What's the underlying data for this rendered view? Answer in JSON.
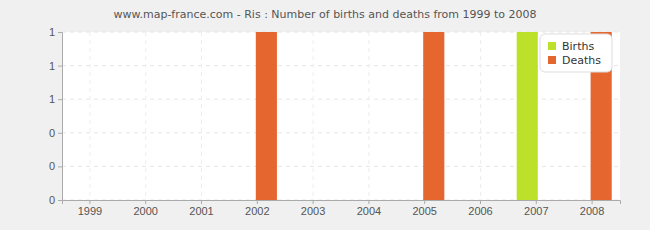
{
  "chart_data": {
    "type": "bar",
    "title": "www.map-france.com - Ris : Number of births and deaths from 1999 to 2008",
    "categories": [
      "1999",
      "2000",
      "2001",
      "2002",
      "2003",
      "2004",
      "2005",
      "2006",
      "2007",
      "2008"
    ],
    "series": [
      {
        "name": "Births",
        "color": "#bde02a",
        "values": [
          0,
          0,
          0,
          0,
          0,
          0,
          0,
          0,
          1,
          0
        ]
      },
      {
        "name": "Deaths",
        "color": "#e5672f",
        "values": [
          0,
          0,
          0,
          1,
          0,
          0,
          1,
          0,
          0,
          1
        ]
      }
    ],
    "ylim": [
      0,
      1
    ],
    "yticks": [
      0,
      {
        "value": 0.2,
        "label": "0"
      },
      {
        "value": 0.4,
        "label": "0"
      },
      {
        "value": 0.6,
        "label": "1"
      },
      {
        "value": 0.8,
        "label": "1"
      },
      1
    ],
    "grid": true,
    "legend": "top-right"
  }
}
